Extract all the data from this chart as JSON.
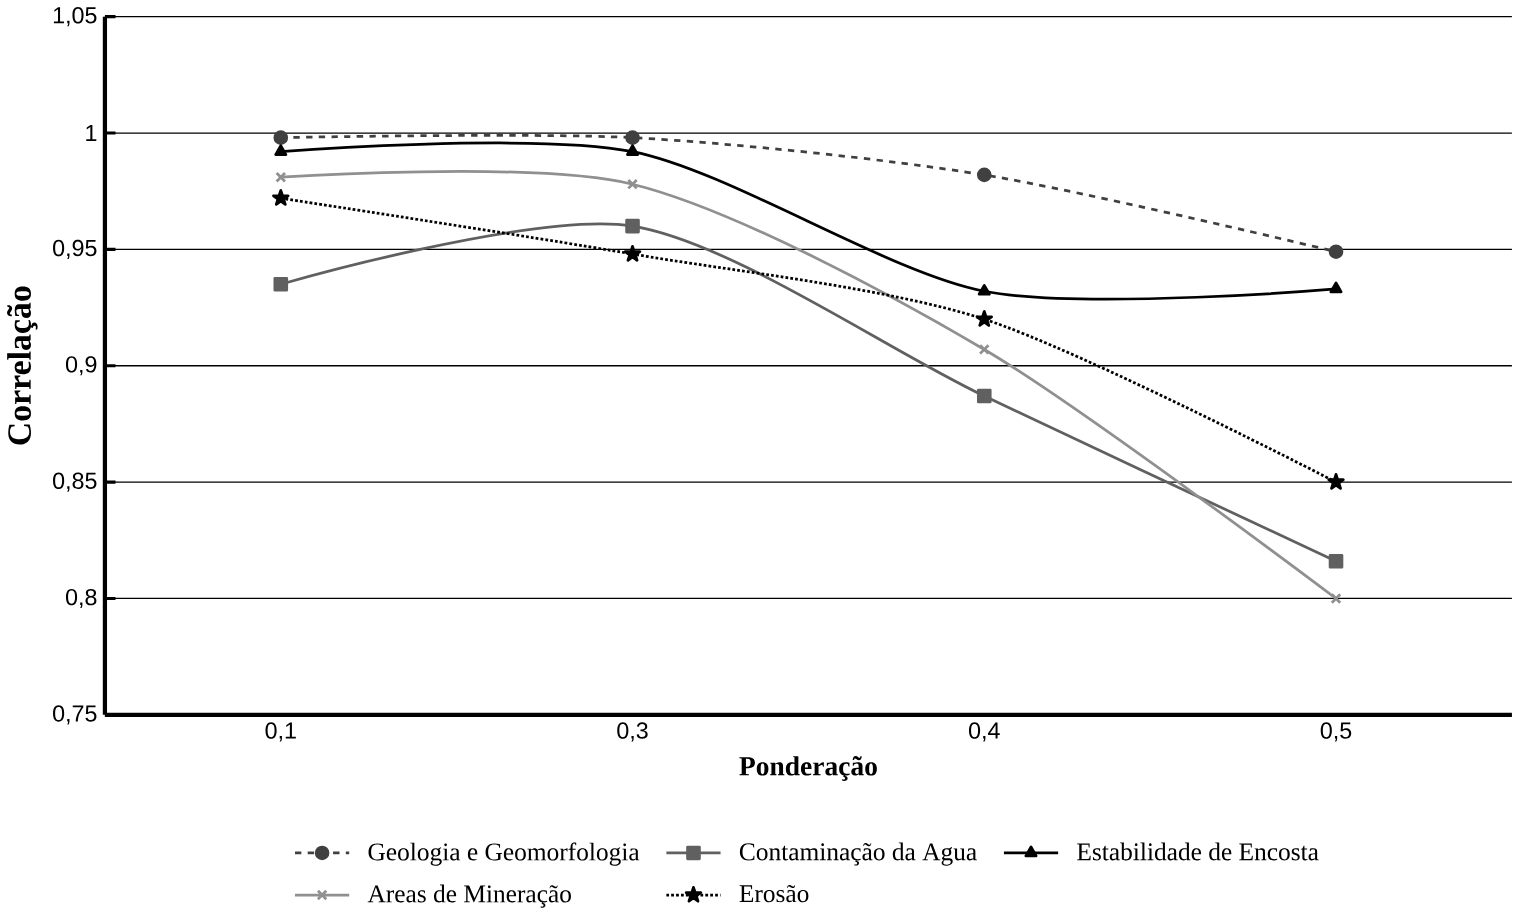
{
  "chart_data": {
    "type": "line",
    "xlabel": "Ponderação",
    "ylabel": "Correlação",
    "categories": [
      "0,1",
      "0,3",
      "0,4",
      "0,5"
    ],
    "ylim": [
      0.75,
      1.05
    ],
    "yticks": [
      {
        "value": 0.75,
        "label": "0,75"
      },
      {
        "value": 0.8,
        "label": "0,8"
      },
      {
        "value": 0.85,
        "label": "0,85"
      },
      {
        "value": 0.9,
        "label": "0,9"
      },
      {
        "value": 0.95,
        "label": "0,95"
      },
      {
        "value": 1,
        "label": "1"
      },
      {
        "value": 1.05,
        "label": "1,05"
      }
    ],
    "grid": "y",
    "legend": "bottom",
    "series": [
      {
        "name": "Geologia e Geomorfologia",
        "color": "#404040",
        "marker": "circle",
        "line_style": "dashed",
        "values": [
          0.998,
          0.998,
          0.982,
          0.949
        ]
      },
      {
        "name": "Contaminação da Agua",
        "color": "#606060",
        "marker": "square",
        "line_style": "solid",
        "values": [
          0.935,
          0.96,
          0.887,
          0.816
        ]
      },
      {
        "name": "Estabilidade de Encosta",
        "color": "#000000",
        "marker": "triangle",
        "line_style": "solid",
        "values": [
          0.992,
          0.992,
          0.932,
          0.933
        ]
      },
      {
        "name": "Areas de Mineração",
        "color": "#909090",
        "marker": "cross",
        "line_style": "solid",
        "values": [
          0.981,
          0.978,
          0.907,
          0.8
        ]
      },
      {
        "name": "Erosão",
        "color": "#000000",
        "marker": "star",
        "line_style": "dotted",
        "values": [
          0.972,
          0.948,
          0.92,
          0.85
        ]
      }
    ]
  }
}
